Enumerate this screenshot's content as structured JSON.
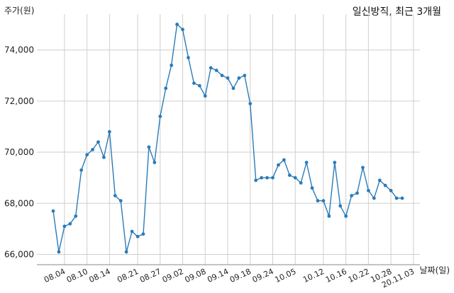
{
  "chart_data": {
    "type": "line",
    "title": "일신방직, 최근 3개월",
    "ylabel": "주가(원)",
    "xlabel": "날짜(일)",
    "ylim": [
      65600,
      75400
    ],
    "yticks": [
      66000,
      68000,
      70000,
      72000,
      74000
    ],
    "ytick_labels": [
      "66,000",
      "68,000",
      "70,000",
      "72,000",
      "74,000"
    ],
    "xtick_labels": [
      "08.04",
      "08.10",
      "08.14",
      "08.21",
      "08.27",
      "09.02",
      "09.08",
      "09.14",
      "09.18",
      "09.24",
      "10.05",
      "10.12",
      "10.16",
      "10.22",
      "10.28",
      "20.11.03"
    ],
    "xtick_index": [
      2,
      6,
      10,
      15,
      19,
      23,
      27,
      31,
      35,
      39,
      43,
      48,
      52,
      56,
      60,
      64
    ],
    "grid": true,
    "series": [
      {
        "name": "",
        "color": "#2b7bb9",
        "values": [
          67700,
          66100,
          67100,
          67200,
          67500,
          69300,
          69900,
          70100,
          70400,
          69800,
          70800,
          68300,
          68100,
          66100,
          66900,
          66700,
          66800,
          70200,
          69600,
          71400,
          72500,
          73400,
          75000,
          74800,
          73700,
          72700,
          72600,
          72200,
          73300,
          73200,
          73000,
          72900,
          72500,
          72900,
          73000,
          71900,
          68900,
          69000,
          69000,
          69000,
          69500,
          69700,
          69100,
          69000,
          68800,
          69600,
          68600,
          68100,
          68100,
          67500,
          69600,
          67900,
          67500,
          68300,
          68400,
          69400,
          68500,
          68200,
          68900,
          68700,
          68500,
          68200,
          68200
        ]
      }
    ]
  }
}
